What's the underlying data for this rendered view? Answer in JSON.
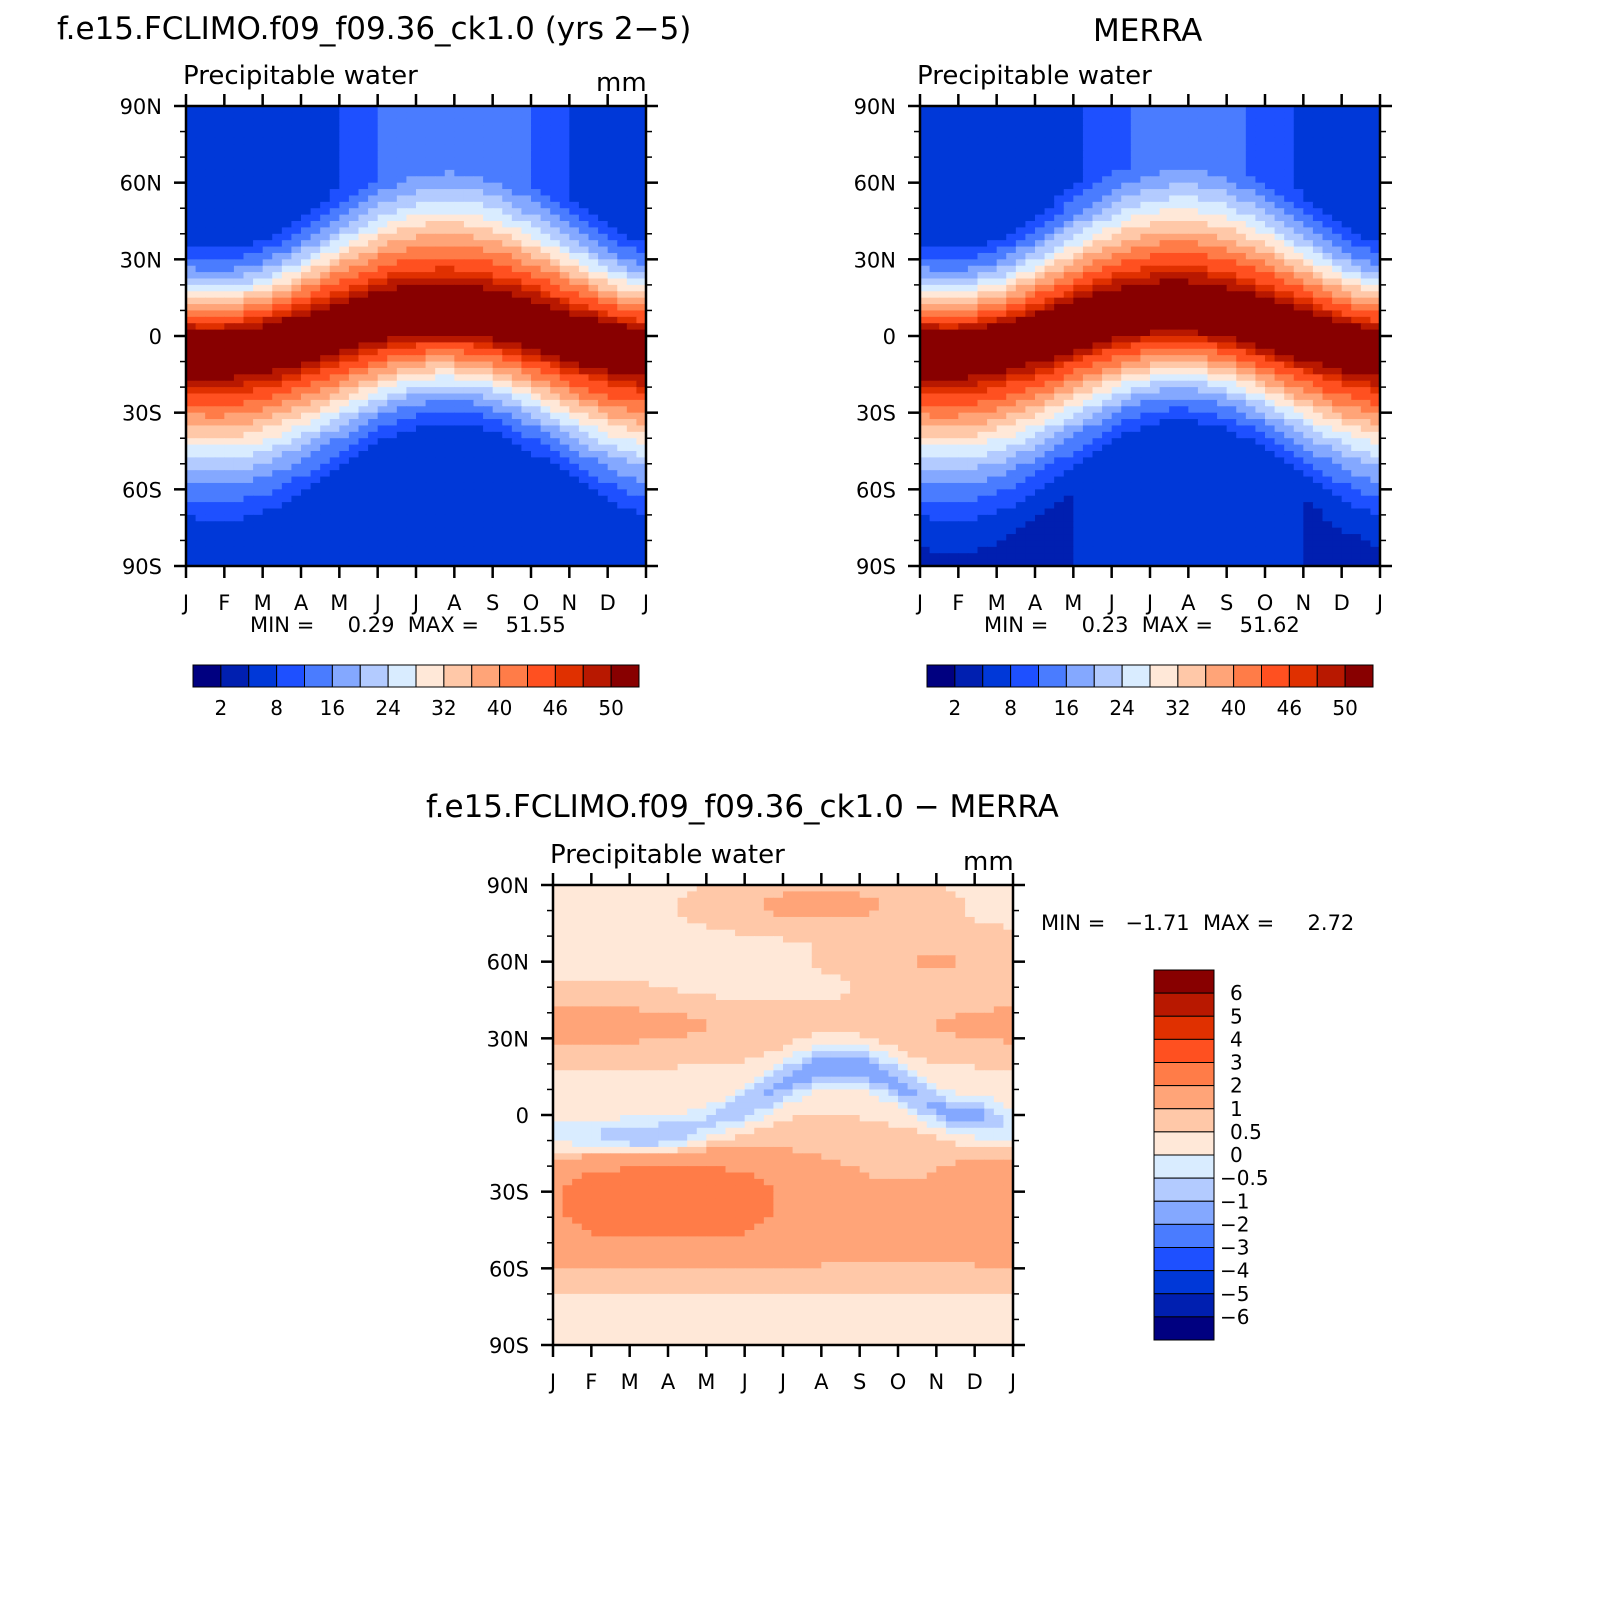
{
  "panels": {
    "model": {
      "title": "f.e15.FCLIMO.f09_f09.36_ck1.0 (yrs 2−5)",
      "variable": "Precipitable water",
      "units": "mm",
      "stats": "MIN =     0.29  MAX =    51.55"
    },
    "obs": {
      "title": "MERRA",
      "variable": "Precipitable water",
      "stats": "MIN =     0.23  MAX =    51.62"
    },
    "diff": {
      "title": "f.e15.FCLIMO.f09_f09.36_ck1.0 − MERRA",
      "variable": "Precipitable water",
      "units": "mm",
      "stats": "MIN =   −1.71  MAX =     2.72"
    }
  },
  "chart_data": [
    {
      "type": "heatmap",
      "title": "f.e15.FCLIMO.f09_f09.36_ck1.0 (yrs 2-5)",
      "subtitle": "Precipitable water",
      "units": "mm",
      "x_ticks": [
        "J",
        "F",
        "M",
        "A",
        "M",
        "J",
        "J",
        "A",
        "S",
        "O",
        "N",
        "D",
        "J"
      ],
      "y_ticks": [
        "90N",
        "60N",
        "30N",
        "0",
        "30S",
        "60S",
        "90S"
      ],
      "min": 0.29,
      "max": 51.55,
      "colorbar_labels": [
        "2",
        "8",
        "16",
        "24",
        "32",
        "40",
        "46",
        "50"
      ],
      "colorbar_colors": [
        "#000080",
        "#001fb0",
        "#0038d8",
        "#1e50ff",
        "#4a7cff",
        "#84a8ff",
        "#b3cbff",
        "#d9ecff",
        "#ffe8d8",
        "#ffc8a8",
        "#ffa478",
        "#ff7c48",
        "#ff5020",
        "#e03000",
        "#b81800",
        "#880000"
      ],
      "field": {
        "max_lat_jan": -5,
        "max_lat_jul": 8,
        "peak": 51.5,
        "pole_min": 2
      }
    },
    {
      "type": "heatmap",
      "title": "MERRA",
      "subtitle": "Precipitable water",
      "x_ticks": [
        "J",
        "F",
        "M",
        "A",
        "M",
        "J",
        "J",
        "A",
        "S",
        "O",
        "N",
        "D",
        "J"
      ],
      "y_ticks": [
        "90N",
        "60N",
        "30N",
        "0",
        "30S",
        "60S",
        "90S"
      ],
      "min": 0.23,
      "max": 51.62,
      "colorbar_labels": [
        "2",
        "8",
        "16",
        "24",
        "32",
        "40",
        "46",
        "50"
      ],
      "colorbar_colors": [
        "#000080",
        "#001fb0",
        "#0038d8",
        "#1e50ff",
        "#4a7cff",
        "#84a8ff",
        "#b3cbff",
        "#d9ecff",
        "#ffe8d8",
        "#ffc8a8",
        "#ffa478",
        "#ff7c48",
        "#ff5020",
        "#e03000",
        "#b81800",
        "#880000"
      ],
      "field": {
        "max_lat_jan": -5,
        "max_lat_jul": 9,
        "peak": 51.6,
        "pole_min": 1
      }
    },
    {
      "type": "heatmap",
      "title": "f.e15.FCLIMO.f09_f09.36_ck1.0 - MERRA",
      "subtitle": "Precipitable water",
      "units": "mm",
      "x_ticks": [
        "J",
        "F",
        "M",
        "A",
        "M",
        "J",
        "J",
        "A",
        "S",
        "O",
        "N",
        "D",
        "J"
      ],
      "y_ticks": [
        "90N",
        "60N",
        "30N",
        "0",
        "30S",
        "60S",
        "90S"
      ],
      "min": -1.71,
      "max": 2.72,
      "colorbar_labels": [
        "6",
        "5",
        "4",
        "3",
        "2",
        "1",
        "0.5",
        "0",
        "−0.5",
        "−1",
        "−2",
        "−3",
        "−4",
        "−5",
        "−6"
      ],
      "colorbar_colors": [
        "#880000",
        "#b81800",
        "#e03000",
        "#ff5020",
        "#ff7c48",
        "#ffa478",
        "#ffc8a8",
        "#ffe8d8",
        "#d9ecff",
        "#b3cbff",
        "#84a8ff",
        "#4a7cff",
        "#1e50ff",
        "#0038d8",
        "#001fb0",
        "#000080"
      ]
    }
  ]
}
